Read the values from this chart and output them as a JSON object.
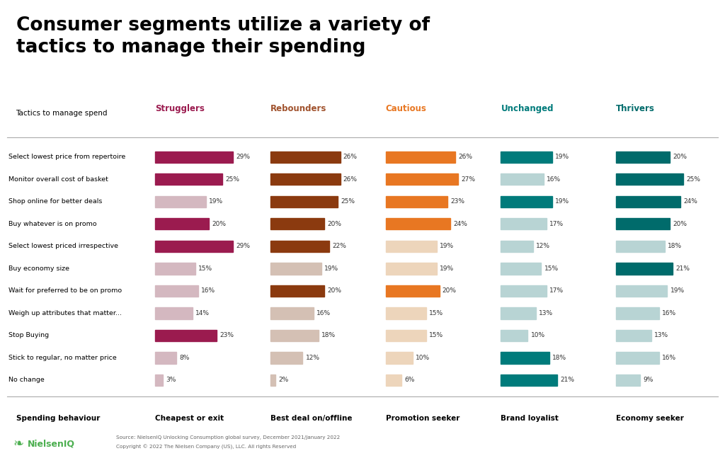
{
  "title": "Consumer segments utilize a variety of\ntactics to manage their spending",
  "categories": [
    "Select lowest price from repertoire",
    "Monitor overall cost of basket",
    "Shop online for better deals",
    "Buy whatever is on promo",
    "Select lowest priced irrespective",
    "Buy economy size",
    "Wait for preferred to be on promo",
    "Weigh up attributes that matter...",
    "Stop Buying",
    "Stick to regular, no matter price",
    "No change"
  ],
  "columns": [
    "Strugglers",
    "Rebounders",
    "Cautious",
    "Unchanged",
    "Thrivers"
  ],
  "column_subtitles": [
    "Cheapest or exit",
    "Best deal on/offline",
    "Promotion seeker",
    "Brand loyalist",
    "Economy seeker"
  ],
  "values": {
    "Strugglers": [
      29,
      25,
      19,
      20,
      29,
      15,
      16,
      14,
      23,
      8,
      3
    ],
    "Rebounders": [
      26,
      26,
      25,
      20,
      22,
      19,
      20,
      16,
      18,
      12,
      2
    ],
    "Cautious": [
      26,
      27,
      23,
      24,
      19,
      19,
      20,
      15,
      15,
      10,
      6
    ],
    "Unchanged": [
      19,
      16,
      19,
      17,
      12,
      15,
      17,
      13,
      10,
      18,
      21
    ],
    "Thrivers": [
      20,
      25,
      24,
      20,
      18,
      21,
      19,
      16,
      13,
      16,
      9
    ]
  },
  "highlighted": {
    "Strugglers": [
      true,
      true,
      false,
      true,
      true,
      false,
      false,
      false,
      true,
      false,
      false
    ],
    "Rebounders": [
      true,
      true,
      true,
      true,
      true,
      false,
      true,
      false,
      false,
      false,
      false
    ],
    "Cautious": [
      true,
      true,
      true,
      true,
      false,
      false,
      true,
      false,
      false,
      false,
      false
    ],
    "Unchanged": [
      true,
      false,
      true,
      false,
      false,
      false,
      false,
      false,
      false,
      true,
      true
    ],
    "Thrivers": [
      true,
      true,
      true,
      true,
      false,
      true,
      false,
      false,
      false,
      false,
      false
    ]
  },
  "colors": {
    "Strugglers_highlight": "#9B1B4F",
    "Strugglers_normal": "#D4B8C0",
    "Rebounders_highlight": "#8B3A0F",
    "Rebounders_normal": "#D4C0B4",
    "Cautious_highlight": "#E87722",
    "Cautious_normal": "#EDD5BB",
    "Unchanged_highlight": "#007B7B",
    "Unchanged_normal": "#B8D4D4",
    "Thrivers_highlight": "#006B6B",
    "Thrivers_normal": "#B8D4D4"
  },
  "label_colors": {
    "Strugglers": "#9B1B4F",
    "Rebounders": "#A0522D",
    "Cautious": "#E87722",
    "Unchanged": "#007B7B",
    "Thrivers": "#006B6B"
  },
  "background_color": "#FFFFFF",
  "source_text": "Source: NielsenIQ Unlocking Consumption global survey, December 2021/January 2022",
  "copyright_text": "Copyright © 2022 The Nielsen Company (US), LLC. All rights Reserved"
}
